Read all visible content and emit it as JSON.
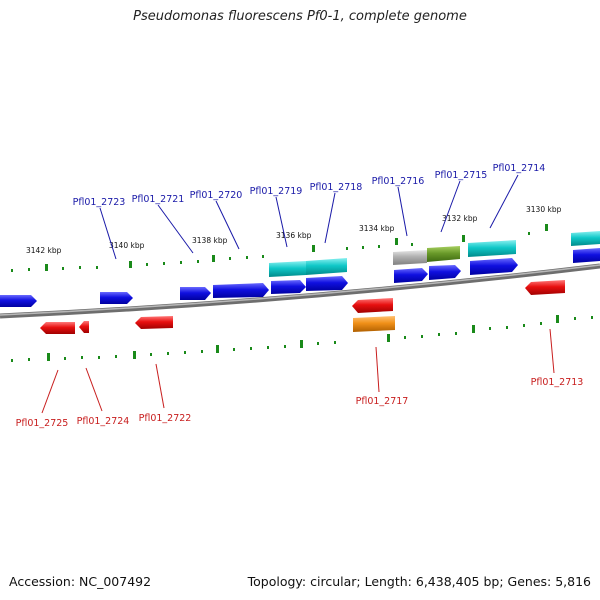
{
  "title": "Pseudomonas fluorescens Pf0-1, complete genome",
  "footer": {
    "accession": "Accession: NC_007492",
    "summary": "Topology: circular; Length: 6,438,405 bp; Genes: 5,816"
  },
  "colors": {
    "background": "#ffffff",
    "backbone": "#808080",
    "ticks": "#1a8a1a",
    "forward_label": "#1a1aa8",
    "reverse_label": "#c81e1e",
    "gene_blue": "#1010e0",
    "gene_red": "#e81010",
    "gene_cyan": "#10c8c8",
    "gene_gray": "#b0b0b0",
    "gene_olive": "#6a9a2a",
    "gene_orange": "#f09018"
  },
  "scale_labels": [
    "3142 kbp",
    "3140 kbp",
    "3138 kbp",
    "3136 kbp",
    "3134 kbp",
    "3132 kbp",
    "3130 kbp"
  ],
  "forward_gene_labels": [
    "Pfl01_2723",
    "Pfl01_2721",
    "Pfl01_2720",
    "Pfl01_2719",
    "Pfl01_2718",
    "Pfl01_2716",
    "Pfl01_2715",
    "Pfl01_2714"
  ],
  "reverse_gene_labels": [
    "Pfl01_2725",
    "Pfl01_2724",
    "Pfl01_2722",
    "Pfl01_2717",
    "Pfl01_2713"
  ]
}
